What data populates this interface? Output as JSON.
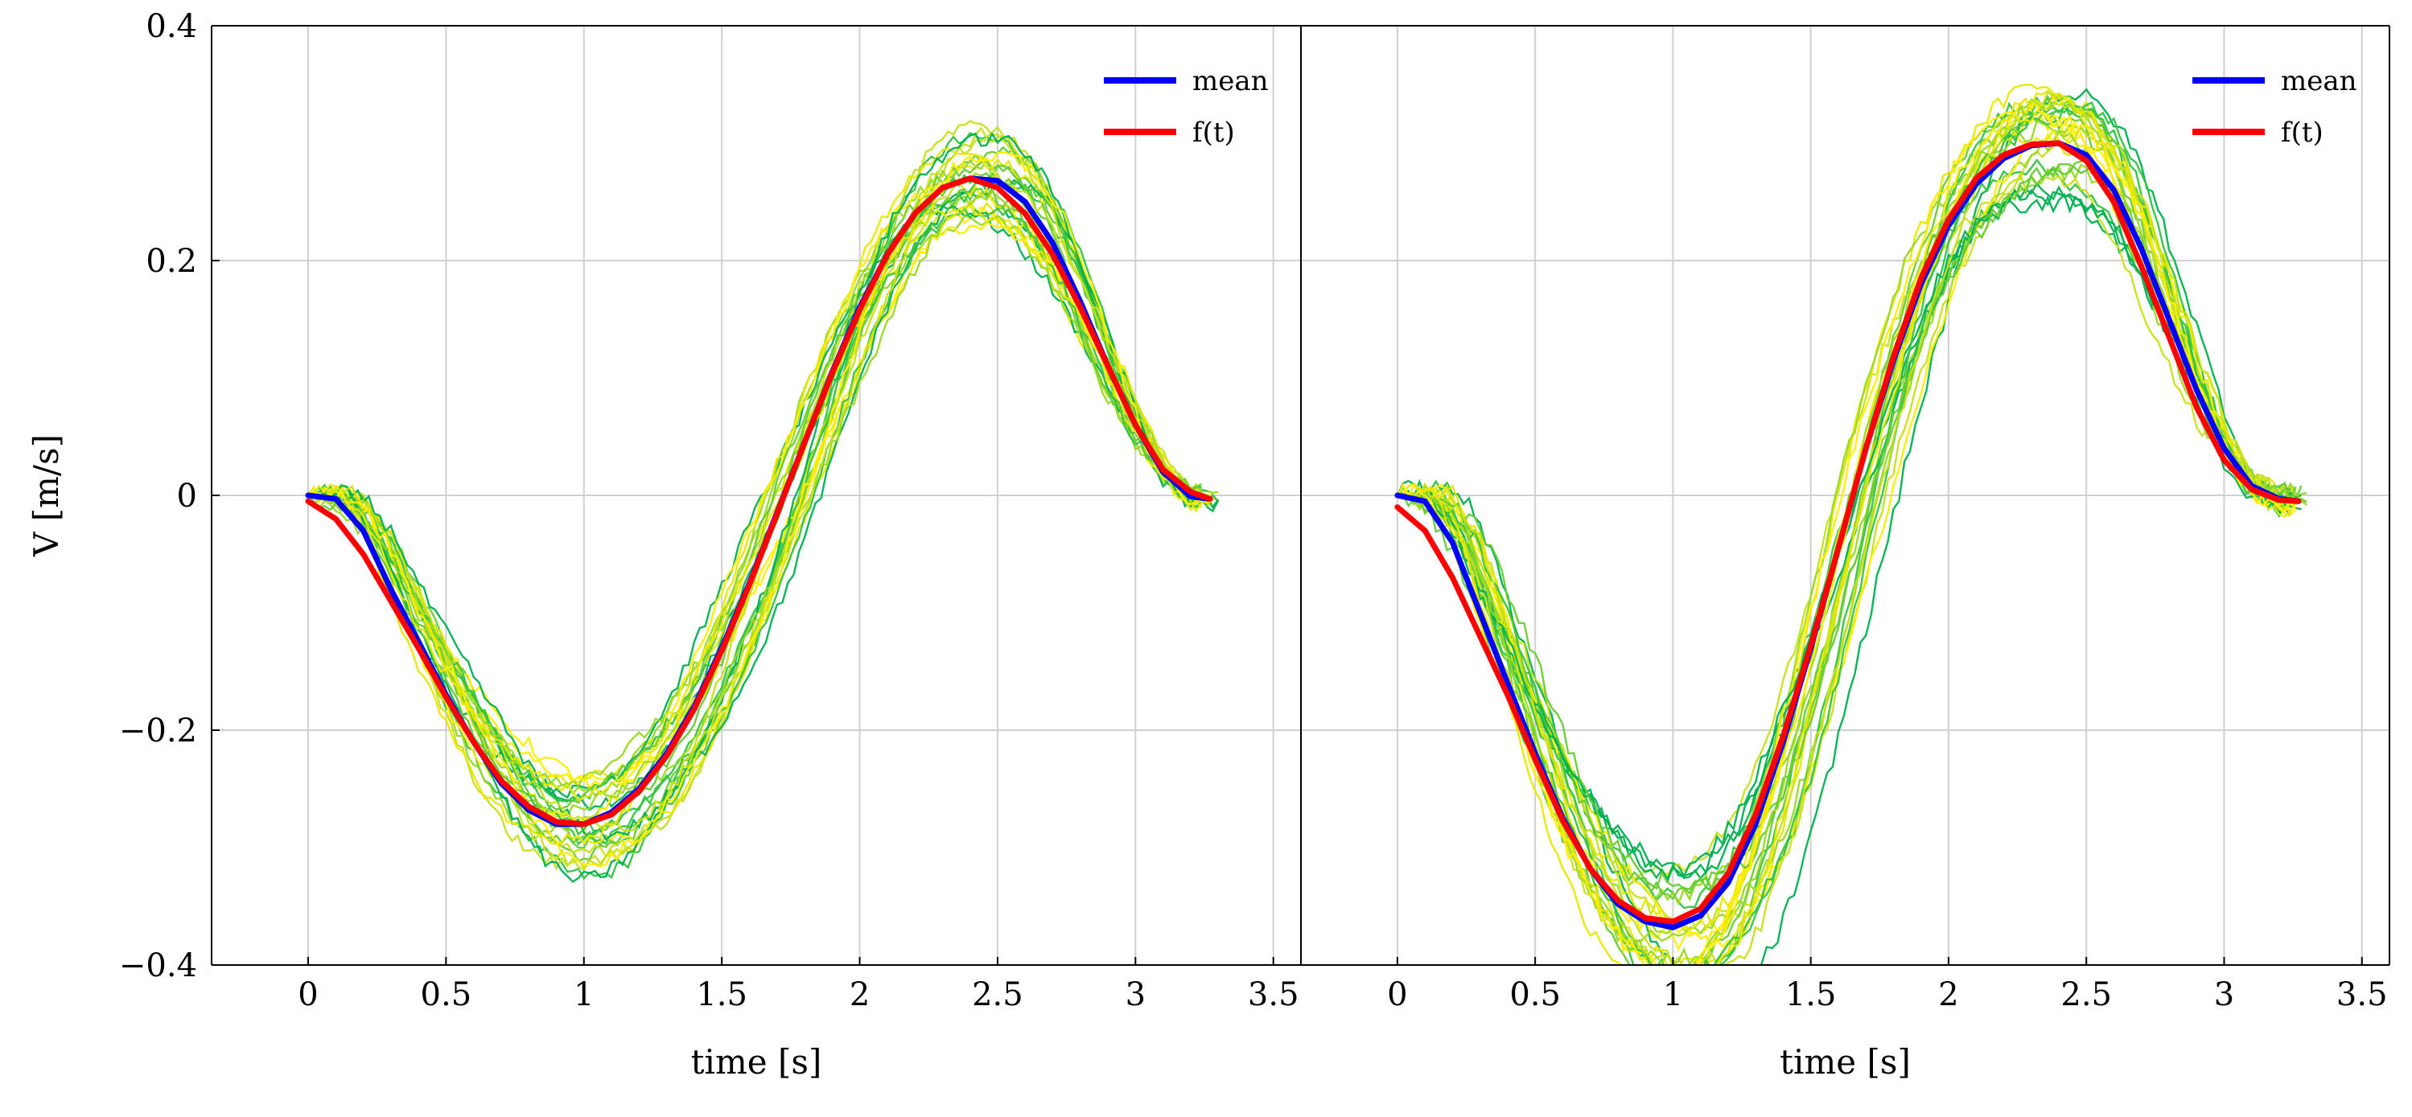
{
  "chart_data": [
    {
      "type": "line",
      "panel": "left",
      "xlabel": "time [s]",
      "ylabel": "V [m/s]",
      "xlim": [
        -0.35,
        3.6
      ],
      "ylim": [
        -0.4,
        0.4
      ],
      "x_ticks": [
        0,
        0.5,
        1,
        1.5,
        2,
        2.5,
        3,
        3.5
      ],
      "x_tick_labels": [
        "0",
        "0.5",
        "1",
        "1.5",
        "2",
        "2.5",
        "3",
        "3.5"
      ],
      "y_ticks": [
        -0.4,
        -0.2,
        0,
        0.2,
        0.4
      ],
      "y_tick_labels": [
        "−0.4",
        "−0.2",
        "0",
        "0.2",
        "0.4"
      ],
      "grid": true,
      "legend_position": "top-right",
      "series": [
        {
          "name": "mean",
          "color": "#0000ff",
          "x": [
            0,
            0.1,
            0.2,
            0.3,
            0.4,
            0.5,
            0.6,
            0.7,
            0.8,
            0.9,
            1.0,
            1.1,
            1.2,
            1.3,
            1.4,
            1.5,
            1.6,
            1.7,
            1.8,
            1.9,
            2.0,
            2.1,
            2.2,
            2.3,
            2.4,
            2.5,
            2.6,
            2.7,
            2.8,
            2.9,
            3.0,
            3.1,
            3.2,
            3.27
          ],
          "values": [
            0,
            -0.003,
            -0.03,
            -0.08,
            -0.125,
            -0.17,
            -0.21,
            -0.245,
            -0.268,
            -0.28,
            -0.28,
            -0.27,
            -0.25,
            -0.22,
            -0.18,
            -0.13,
            -0.075,
            -0.015,
            0.045,
            0.105,
            0.16,
            0.205,
            0.24,
            0.262,
            0.27,
            0.268,
            0.25,
            0.215,
            0.165,
            0.11,
            0.06,
            0.02,
            -0.001,
            -0.003
          ]
        },
        {
          "name": "f(t)",
          "color": "#ff0000",
          "x": [
            0,
            0.1,
            0.2,
            0.3,
            0.4,
            0.5,
            0.6,
            0.7,
            0.8,
            0.9,
            1.0,
            1.1,
            1.2,
            1.3,
            1.4,
            1.5,
            1.6,
            1.7,
            1.8,
            1.9,
            2.0,
            2.1,
            2.2,
            2.3,
            2.4,
            2.5,
            2.6,
            2.7,
            2.8,
            2.9,
            3.0,
            3.1,
            3.2,
            3.27
          ],
          "values": [
            -0.005,
            -0.02,
            -0.05,
            -0.09,
            -0.13,
            -0.172,
            -0.21,
            -0.243,
            -0.265,
            -0.278,
            -0.28,
            -0.272,
            -0.252,
            -0.222,
            -0.182,
            -0.132,
            -0.076,
            -0.016,
            0.045,
            0.104,
            0.158,
            0.205,
            0.24,
            0.262,
            0.27,
            0.262,
            0.24,
            0.205,
            0.16,
            0.11,
            0.06,
            0.022,
            0.003,
            -0.003
          ]
        }
      ],
      "trial_colors": [
        "#00b050",
        "#33c440",
        "#66cc33",
        "#99d926",
        "#c8e01a",
        "#e8e800",
        "#ffee00"
      ],
      "legend": [
        "mean",
        "f(t)"
      ]
    },
    {
      "type": "line",
      "panel": "right",
      "xlabel": "time [s]",
      "ylabel": "",
      "xlim": [
        -0.35,
        3.6
      ],
      "ylim": [
        -0.4,
        0.4
      ],
      "x_ticks": [
        0,
        0.5,
        1,
        1.5,
        2,
        2.5,
        3,
        3.5
      ],
      "x_tick_labels": [
        "0",
        "0.5",
        "1",
        "1.5",
        "2",
        "2.5",
        "3",
        "3.5"
      ],
      "grid": true,
      "legend_position": "top-right",
      "series": [
        {
          "name": "mean",
          "color": "#0000ff",
          "x": [
            0,
            0.1,
            0.2,
            0.3,
            0.4,
            0.5,
            0.6,
            0.7,
            0.8,
            0.9,
            1.0,
            1.1,
            1.2,
            1.3,
            1.4,
            1.5,
            1.6,
            1.7,
            1.8,
            1.9,
            2.0,
            2.1,
            2.2,
            2.3,
            2.4,
            2.5,
            2.6,
            2.7,
            2.8,
            2.9,
            3.0,
            3.1,
            3.2,
            3.27
          ],
          "values": [
            0,
            -0.005,
            -0.04,
            -0.1,
            -0.16,
            -0.22,
            -0.275,
            -0.318,
            -0.348,
            -0.363,
            -0.368,
            -0.358,
            -0.33,
            -0.28,
            -0.21,
            -0.13,
            -0.045,
            0.04,
            0.115,
            0.18,
            0.23,
            0.265,
            0.287,
            0.298,
            0.3,
            0.29,
            0.26,
            0.21,
            0.15,
            0.09,
            0.04,
            0.008,
            -0.003,
            -0.005
          ]
        },
        {
          "name": "f(t)",
          "color": "#ff0000",
          "x": [
            0,
            0.1,
            0.2,
            0.3,
            0.4,
            0.5,
            0.6,
            0.7,
            0.8,
            0.9,
            1.0,
            1.1,
            1.2,
            1.3,
            1.4,
            1.5,
            1.6,
            1.7,
            1.8,
            1.9,
            2.0,
            2.1,
            2.2,
            2.3,
            2.4,
            2.5,
            2.6,
            2.7,
            2.8,
            2.9,
            3.0,
            3.1,
            3.2,
            3.27
          ],
          "values": [
            -0.01,
            -0.03,
            -0.07,
            -0.12,
            -0.17,
            -0.225,
            -0.277,
            -0.318,
            -0.345,
            -0.36,
            -0.363,
            -0.352,
            -0.322,
            -0.272,
            -0.205,
            -0.128,
            -0.045,
            0.04,
            0.118,
            0.185,
            0.235,
            0.27,
            0.29,
            0.299,
            0.3,
            0.285,
            0.25,
            0.195,
            0.135,
            0.075,
            0.03,
            0.005,
            -0.004,
            -0.005
          ]
        }
      ],
      "trial_colors": [
        "#00b050",
        "#33c440",
        "#66cc33",
        "#99d926",
        "#c8e01a",
        "#e8e800",
        "#ffee00"
      ],
      "legend": [
        "mean",
        "f(t)"
      ]
    }
  ]
}
